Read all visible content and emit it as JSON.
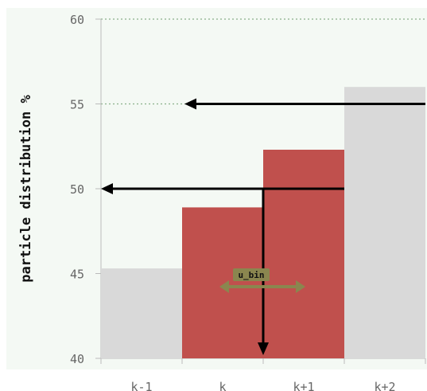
{
  "chart_data": {
    "type": "bar",
    "title": "",
    "xlabel": "",
    "ylabel": "particle distribution %",
    "categories": [
      "k-1",
      "k",
      "k+1",
      "k+2"
    ],
    "values": [
      45.3,
      48.9,
      52.3,
      56.0
    ],
    "ylim": [
      40,
      60
    ],
    "yticks": [
      40,
      45,
      50,
      55,
      60
    ],
    "grid": "dotted horizontal at 55 and 60",
    "highlighted": [
      "k",
      "k+1"
    ],
    "annotation": {
      "label": "u_bin",
      "arrows": [
        {
          "from_category": "k+2",
          "to_y": 55
        },
        {
          "from_category": "k+1",
          "to_y": 50
        },
        {
          "from_y": 50,
          "down_to_y": 40
        }
      ]
    }
  },
  "colors": {
    "background": "#f4f9f4",
    "bar_default": "#d9d9d9",
    "bar_highlight": "#c0504d",
    "arrow": "#000000",
    "badge": "#8a864f",
    "grid": "#8ab08a",
    "axis": "#bbbbbb"
  },
  "icons": [
    "double-headed-arrow-icon"
  ]
}
